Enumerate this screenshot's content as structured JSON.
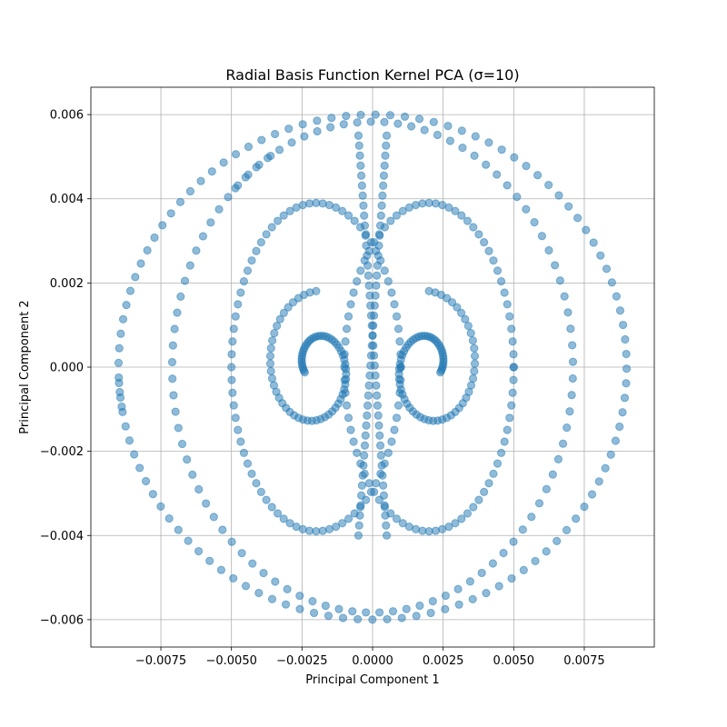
{
  "chart_data": {
    "type": "scatter",
    "title": "Radial Basis Function Kernel PCA (σ=10)",
    "xlabel": "Principal Component 1",
    "ylabel": "Principal Component 2",
    "xlim": [
      -0.00998,
      0.00998
    ],
    "ylim": [
      -0.00665,
      0.00665
    ],
    "grid": true,
    "x_ticks": [
      -0.0075,
      -0.005,
      -0.0025,
      0.0,
      0.0025,
      0.005,
      0.0075
    ],
    "x_tick_labels": [
      "−0.0075",
      "−0.0050",
      "−0.0025",
      "0.0000",
      "0.0025",
      "0.0050",
      "0.0075"
    ],
    "y_ticks": [
      -0.006,
      -0.004,
      -0.002,
      0.0,
      0.002,
      0.004,
      0.006
    ],
    "y_tick_labels": [
      "−0.006",
      "−0.004",
      "−0.002",
      "0.000",
      "0.002",
      "0.004",
      "0.006"
    ],
    "series": [
      {
        "color": "#1f77b4",
        "alpha": 0.5,
        "marker": "circle",
        "points_description_count": 0,
        "x": [],
        "y": []
      }
    ]
  }
}
